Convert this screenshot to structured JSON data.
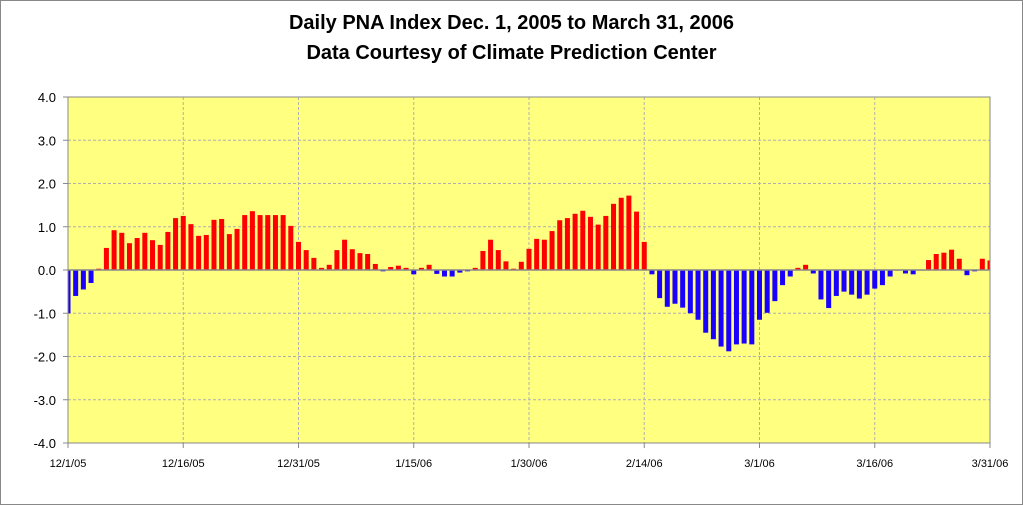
{
  "chart_data": {
    "type": "bar",
    "title": "Daily PNA Index Dec. 1, 2005 to March 31, 2006",
    "subtitle": "Data Courtesy of Climate Prediction Center",
    "xlabel": "",
    "ylabel": "",
    "ylim": [
      -4.0,
      4.0
    ],
    "yticks": [
      "4.0",
      "3.0",
      "2.0",
      "1.0",
      "0.0",
      "-1.0",
      "-2.0",
      "-3.0",
      "-4.0"
    ],
    "xtick_labels": [
      "12/1/05",
      "12/16/05",
      "12/31/05",
      "1/15/06",
      "1/30/06",
      "2/14/06",
      "3/1/06",
      "3/16/06",
      "3/31/06"
    ],
    "xtick_interval_days": 15,
    "start_date": "12/1/05",
    "grid": true,
    "colors": {
      "positive": "#ff0000",
      "negative": "#1a00ff",
      "plot_bg": "#ffff80",
      "grid": "#b0b0b0"
    },
    "values": [
      -1.0,
      -0.6,
      -0.45,
      -0.3,
      0.03,
      0.51,
      0.92,
      0.86,
      0.62,
      0.74,
      0.86,
      0.69,
      0.58,
      0.88,
      1.2,
      1.25,
      1.06,
      0.79,
      0.81,
      1.16,
      1.18,
      0.83,
      0.95,
      1.27,
      1.36,
      1.27,
      1.27,
      1.27,
      1.27,
      1.02,
      0.65,
      0.46,
      0.28,
      0.05,
      0.12,
      0.46,
      0.7,
      0.48,
      0.39,
      0.37,
      0.14,
      -0.03,
      0.07,
      0.1,
      0.05,
      -0.1,
      0.05,
      0.12,
      -0.09,
      -0.15,
      -0.15,
      -0.06,
      -0.03,
      0.05,
      0.44,
      0.7,
      0.46,
      0.2,
      0.03,
      0.19,
      0.49,
      0.72,
      0.7,
      0.9,
      1.15,
      1.2,
      1.3,
      1.37,
      1.23,
      1.05,
      1.25,
      1.53,
      1.67,
      1.72,
      1.35,
      0.65,
      -0.1,
      -0.65,
      -0.85,
      -0.78,
      -0.87,
      -1.0,
      -1.15,
      -1.45,
      -1.6,
      -1.77,
      -1.88,
      -1.72,
      -1.7,
      -1.72,
      -1.15,
      -0.99,
      -0.72,
      -0.35,
      -0.15,
      0.05,
      0.12,
      -0.08,
      -0.68,
      -0.88,
      -0.6,
      -0.5,
      -0.57,
      -0.66,
      -0.57,
      -0.43,
      -0.35,
      -0.15,
      0.0,
      -0.08,
      -0.1,
      0.0,
      0.23,
      0.37,
      0.4,
      0.47,
      0.26,
      -0.12,
      -0.03,
      0.26,
      0.22
    ]
  }
}
